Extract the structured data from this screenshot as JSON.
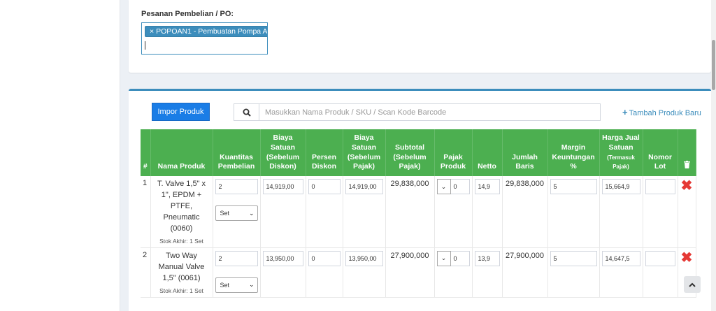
{
  "po": {
    "label": "Pesanan Pembelian / PO:",
    "tag_remove": "×",
    "tag_text": "POPOAN1 - Pembuatan Pompa A"
  },
  "toolbar": {
    "import_label": "Impor Produk",
    "search_placeholder": "Masukkan Nama Produk / SKU / Scan Kode Barcode",
    "add_product_label": "Tambah Produk Baru"
  },
  "table": {
    "headers": {
      "index": "#",
      "name": "Nama Produk",
      "qty": "Kuantitas Pembelian",
      "unit_cost_pre": "Biaya Satuan (Sebelum Diskon)",
      "discount": "Persen Diskon",
      "unit_cost_pretax": "Biaya Satuan (Sebelum Pajak)",
      "subtotal": "Subtotal (Sebelum Pajak)",
      "tax": "Pajak Produk",
      "netto": "Netto",
      "line_total": "Jumlah Baris",
      "margin": "Margin Keuntungan %",
      "sale_price": "Harga Jual Satuan",
      "sale_price_note": "(Termasuk Pajak)",
      "lot": "Nomor Lot"
    },
    "rows": [
      {
        "index": "1",
        "name": "T. Valve 1,5\" x 1\", EPDM + PTFE, Pneumatic (0060)",
        "stock": "Stok Akhir: 1 Set",
        "qty": "2",
        "unit": "Set",
        "unit_cost": "14,919,00",
        "discount": "0",
        "unit_cost_pretax": "14,919,00",
        "subtotal": "29,838,000",
        "tax_value": "0",
        "netto": "14,9",
        "line_total": "29,838,000",
        "margin": "5",
        "sale_price": "15,664,9",
        "lot": ""
      },
      {
        "index": "2",
        "name": "Two Way Manual Valve 1,5\" (0061)",
        "stock": "Stok Akhir: 1 Set",
        "qty": "2",
        "unit": "Set",
        "unit_cost": "13,950,00",
        "discount": "0",
        "unit_cost_pretax": "13,950,00",
        "subtotal": "27,900,000",
        "tax_value": "0",
        "netto": "13,9",
        "line_total": "27,900,000",
        "margin": "5",
        "sale_price": "14,647,5",
        "lot": ""
      }
    ]
  },
  "icons": {
    "search": "search-icon",
    "add": "plus-icon",
    "trash": "trash-icon",
    "delete": "delete-x-icon",
    "chevron_down": "chevron-down-icon",
    "scroll_top": "chevron-up-icon"
  },
  "colors": {
    "header_green": "#4caf50",
    "primary_blue": "#1a7de6",
    "link_blue": "#3c8dbc",
    "delete_red": "#e53935"
  }
}
